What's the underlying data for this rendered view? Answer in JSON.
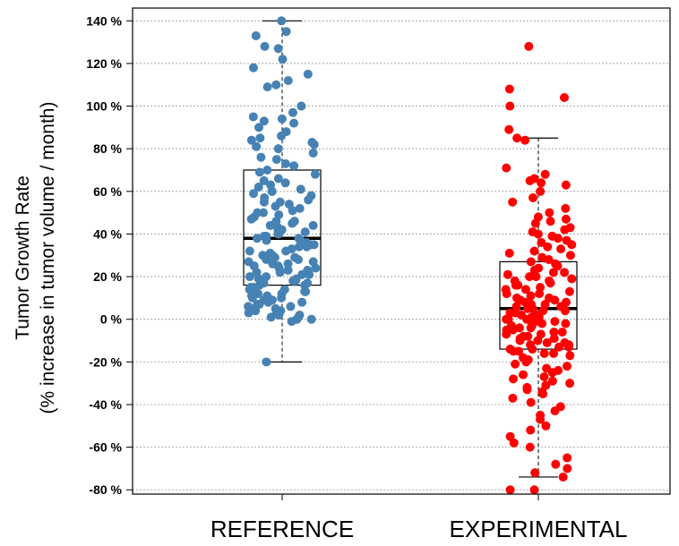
{
  "chart_data": {
    "type": "box",
    "title": "",
    "ylabel": "Tumor Growth Rate",
    "ylabel_sub": "(% increase in tumor volume / month)",
    "ylim": [
      -82,
      146
    ],
    "yticks": [
      -80,
      -60,
      -40,
      -20,
      0,
      20,
      40,
      60,
      80,
      100,
      120,
      140
    ],
    "ytick_suffix": " %",
    "grid": true,
    "categories": [
      "REFERENCE",
      "EXPERIMENTAL"
    ],
    "series": [
      {
        "category": "REFERENCE",
        "color": "#4682b4",
        "box": {
          "whisker_low": -20,
          "q1": 16,
          "median": 38,
          "q3": 70,
          "whisker_high": 140
        },
        "points": [
          140,
          135,
          133,
          128,
          127,
          122,
          118,
          115,
          112,
          110,
          109,
          100,
          97,
          95,
          94,
          93,
          92,
          90,
          88,
          86,
          85,
          84,
          83,
          82,
          81,
          80,
          78,
          76,
          75,
          73,
          72,
          70,
          69,
          68,
          66,
          65,
          64,
          63,
          62,
          61,
          60,
          60,
          59,
          58,
          57,
          56,
          55,
          55,
          54,
          53,
          52,
          51,
          50,
          50,
          49,
          48,
          47,
          46,
          46,
          45,
          44,
          44,
          43,
          42,
          42,
          41,
          40,
          40,
          39,
          39,
          38,
          38,
          37,
          37,
          36,
          35,
          35,
          34,
          34,
          33,
          32,
          32,
          31,
          30,
          30,
          29,
          29,
          28,
          28,
          27,
          27,
          26,
          26,
          25,
          25,
          24,
          24,
          23,
          23,
          22,
          22,
          21,
          21,
          20,
          20,
          19,
          19,
          18,
          18,
          17,
          17,
          16,
          16,
          15,
          15,
          14,
          14,
          13,
          13,
          12,
          12,
          11,
          11,
          10,
          10,
          9,
          9,
          8,
          8,
          7,
          7,
          6,
          6,
          5,
          5,
          4,
          4,
          3,
          3,
          2,
          2,
          1,
          1,
          0,
          0,
          -1,
          -20
        ]
      },
      {
        "category": "EXPERIMENTAL",
        "color": "#ff0000",
        "box": {
          "whisker_low": -74,
          "q1": -14,
          "median": 5,
          "q3": 27,
          "whisker_high": 85
        },
        "points": [
          128,
          108,
          104,
          100,
          89,
          85,
          84,
          71,
          68,
          66,
          65,
          64,
          63,
          60,
          57,
          55,
          52,
          50,
          48,
          47,
          46,
          45,
          43,
          42,
          41,
          40,
          39,
          38,
          37,
          36,
          35,
          34,
          33,
          32,
          31,
          30,
          29,
          28,
          27,
          26,
          25,
          24,
          23,
          22,
          22,
          21,
          20,
          20,
          19,
          18,
          18,
          17,
          16,
          16,
          15,
          14,
          14,
          13,
          12,
          12,
          11,
          10,
          10,
          9,
          9,
          8,
          8,
          7,
          7,
          6,
          6,
          5,
          5,
          4,
          4,
          3,
          3,
          2,
          2,
          1,
          1,
          0,
          0,
          0,
          -1,
          -1,
          -2,
          -2,
          -3,
          -3,
          -4,
          -4,
          -5,
          -5,
          -6,
          -6,
          -7,
          -7,
          -8,
          -8,
          -9,
          -9,
          -10,
          -10,
          -11,
          -11,
          -12,
          -12,
          -13,
          -13,
          -14,
          -14,
          -15,
          -15,
          -16,
          -16,
          -17,
          -18,
          -19,
          -20,
          -21,
          -22,
          -23,
          -24,
          -25,
          -26,
          -27,
          -28,
          -29,
          -30,
          -31,
          -32,
          -33,
          -34,
          -35,
          -37,
          -39,
          -41,
          -43,
          -45,
          -47,
          -50,
          -52,
          -55,
          -58,
          -60,
          -65,
          -68,
          -70,
          -72,
          -74,
          -80,
          -80
        ]
      }
    ]
  }
}
